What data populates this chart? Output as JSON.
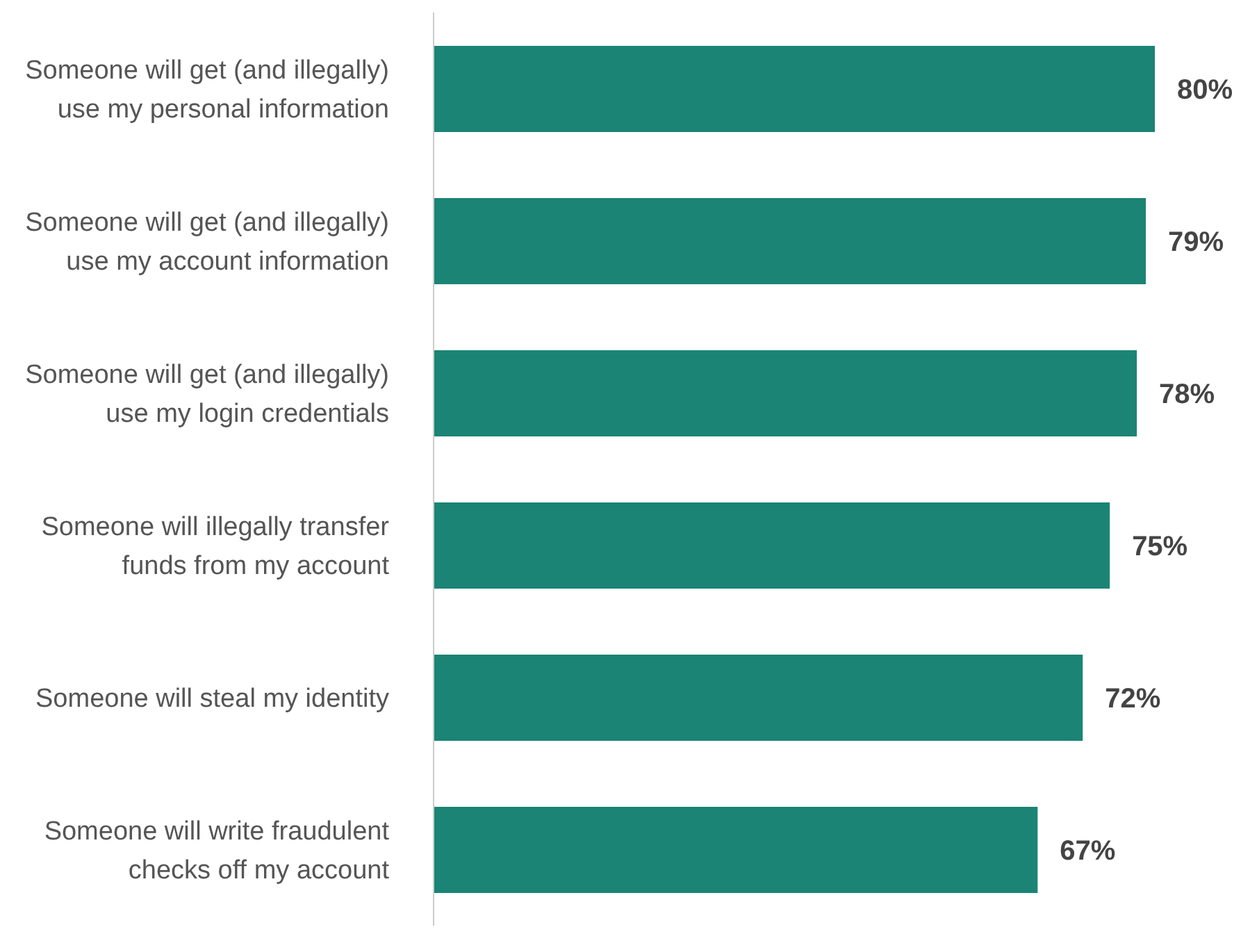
{
  "chart_data": {
    "type": "bar",
    "orientation": "horizontal",
    "categories": [
      "Someone will get (and illegally) use my personal information",
      "Someone will get (and illegally) use my account information",
      "Someone will get (and illegally) use my login credentials",
      "Someone will illegally transfer funds from my account",
      "Someone will steal my identity",
      "Someone will write fraudulent checks off my account"
    ],
    "values": [
      80,
      79,
      78,
      75,
      72,
      67
    ],
    "value_labels": [
      "80%",
      "79%",
      "78%",
      "75%",
      "72%",
      "67%"
    ],
    "color": "#1b8474"
  }
}
